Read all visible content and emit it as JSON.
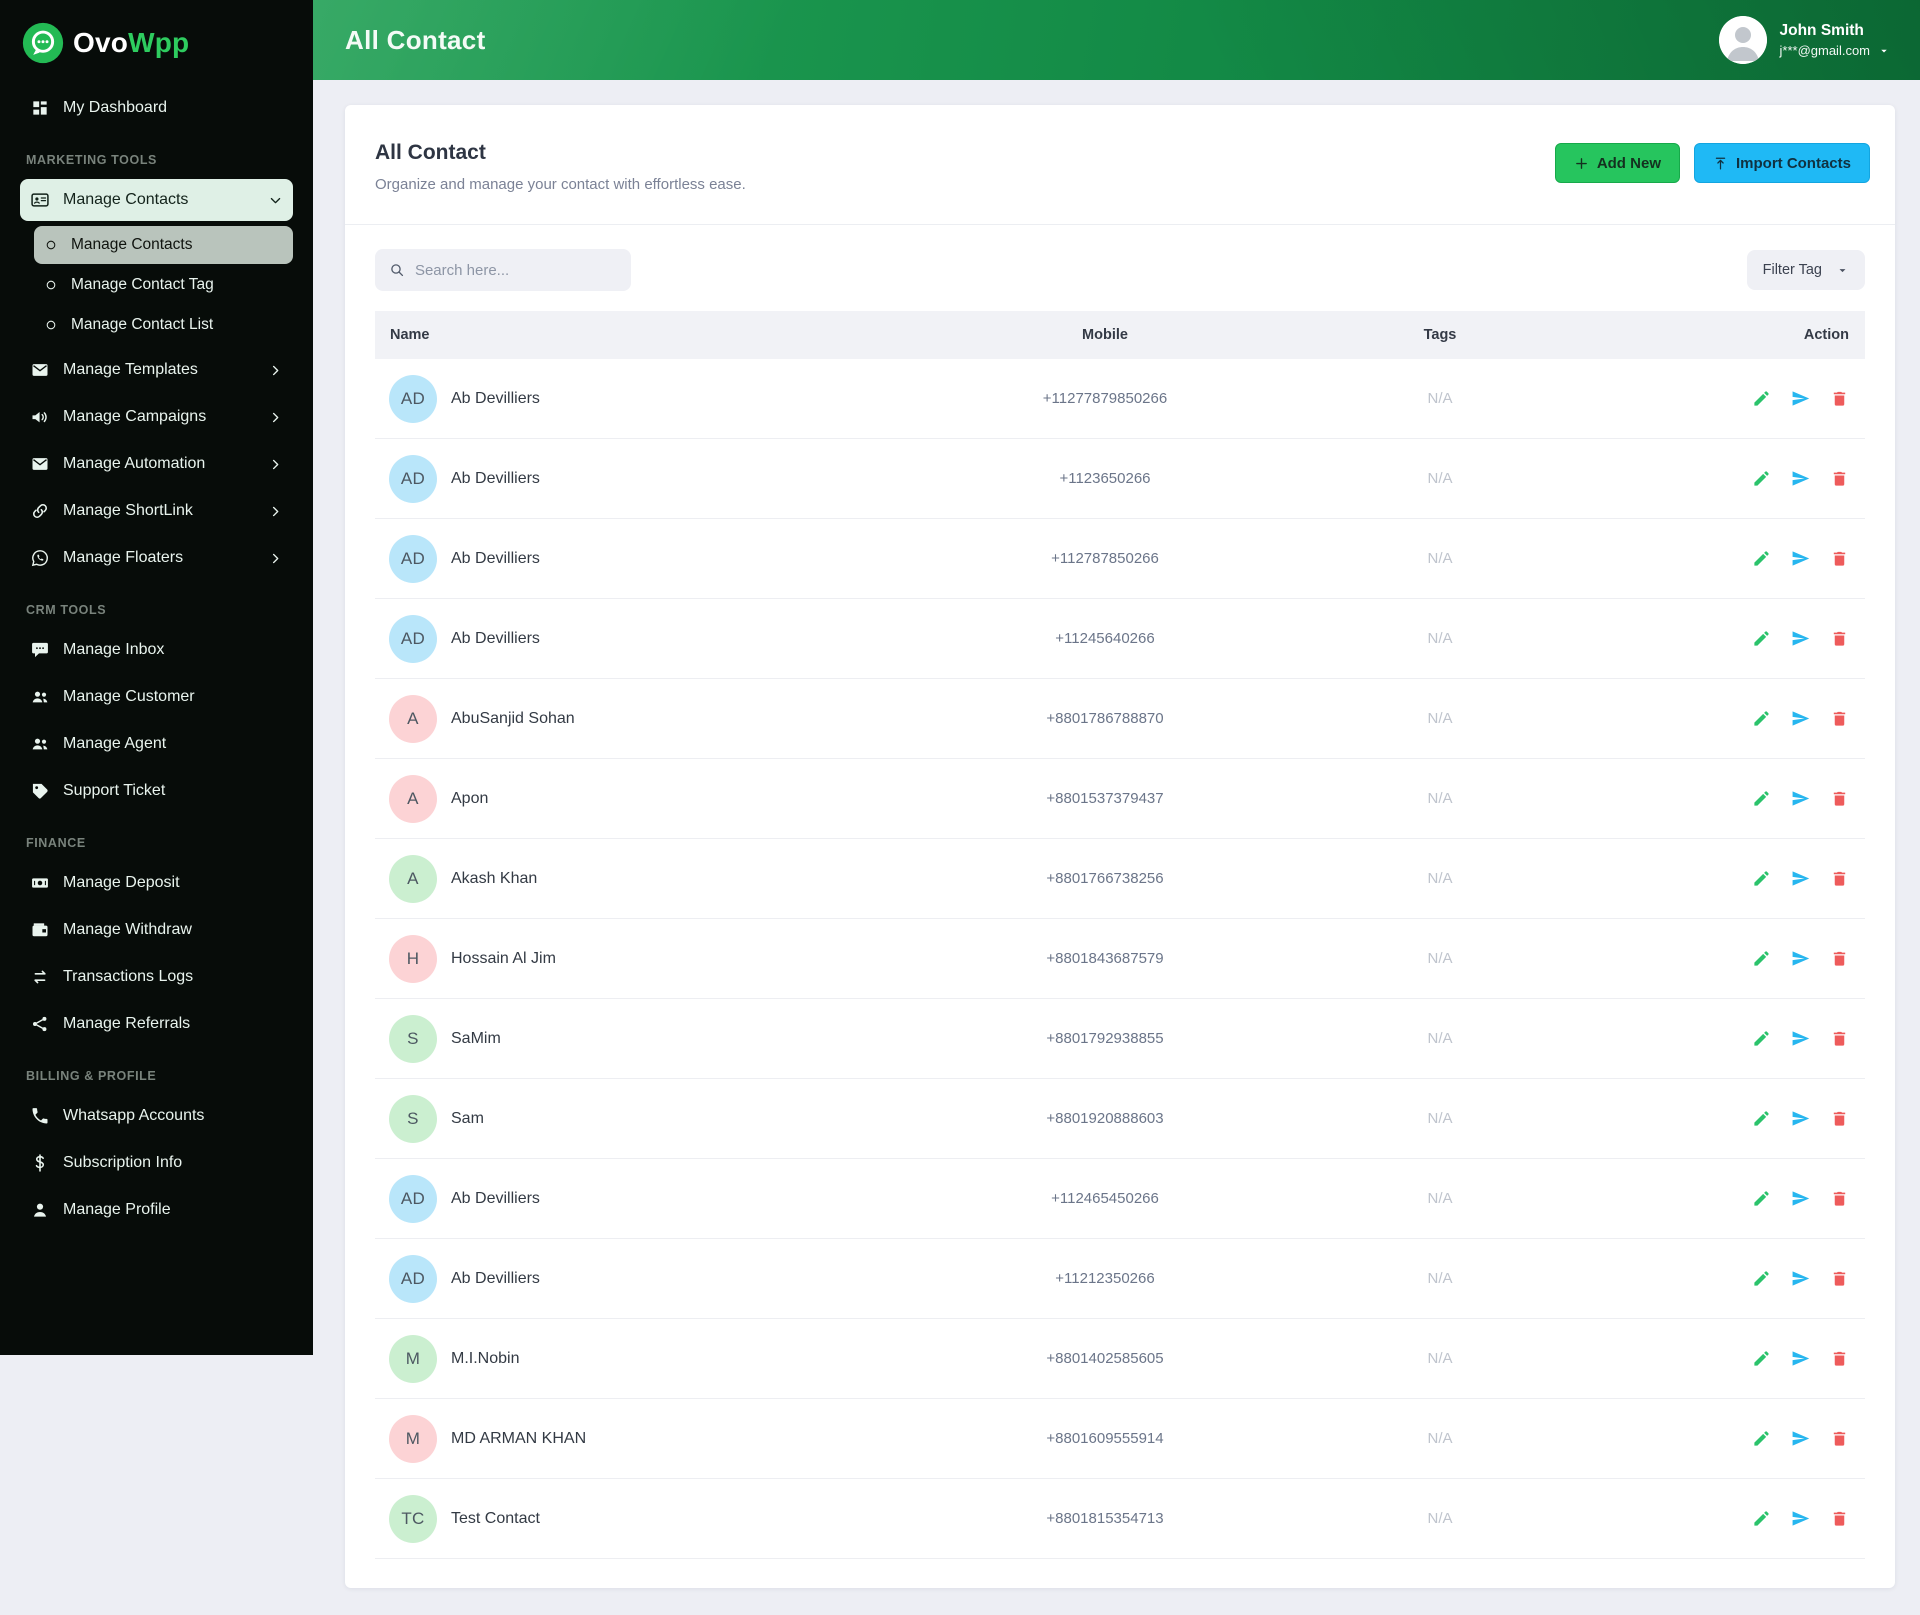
{
  "brand": {
    "name_primary": "Ovo",
    "name_secondary": "Wpp"
  },
  "header": {
    "title": "All Contact",
    "user": {
      "name": "John Smith",
      "email": "j***@gmail.com"
    }
  },
  "sidebar": {
    "entries": [
      {
        "type": "item",
        "icon": "dashboard",
        "label": "My Dashboard"
      },
      {
        "type": "section",
        "label": "MARKETING TOOLS"
      },
      {
        "type": "item",
        "icon": "idcard",
        "label": "Manage Contacts",
        "active": true,
        "chevron": "chevron-down"
      },
      {
        "type": "subitem",
        "icon": "circle",
        "label": "Manage Contacts",
        "active": true
      },
      {
        "type": "subitem",
        "icon": "circle",
        "label": "Manage Contact Tag"
      },
      {
        "type": "subitem",
        "icon": "circle",
        "label": "Manage Contact List"
      },
      {
        "type": "item",
        "icon": "envelope",
        "label": "Manage Templates",
        "chevron": "chevron-right"
      },
      {
        "type": "item",
        "icon": "megaphone",
        "label": "Manage Campaigns",
        "chevron": "chevron-right"
      },
      {
        "type": "item",
        "icon": "envelope",
        "label": "Manage Automation",
        "chevron": "chevron-right"
      },
      {
        "type": "item",
        "icon": "link",
        "label": "Manage ShortLink",
        "chevron": "chevron-right"
      },
      {
        "type": "item",
        "icon": "whatsapp",
        "label": "Manage Floaters",
        "chevron": "chevron-right"
      },
      {
        "type": "section",
        "label": "CRM TOOLS"
      },
      {
        "type": "item",
        "icon": "chat",
        "label": "Manage Inbox"
      },
      {
        "type": "item",
        "icon": "users",
        "label": "Manage Customer"
      },
      {
        "type": "item",
        "icon": "users",
        "label": "Manage Agent"
      },
      {
        "type": "item",
        "icon": "tag",
        "label": "Support Ticket"
      },
      {
        "type": "section",
        "label": "FINANCE"
      },
      {
        "type": "item",
        "icon": "money",
        "label": "Manage Deposit"
      },
      {
        "type": "item",
        "icon": "wallet",
        "label": "Manage Withdraw"
      },
      {
        "type": "item",
        "icon": "exchange",
        "label": "Transactions Logs"
      },
      {
        "type": "item",
        "icon": "share",
        "label": "Manage Referrals"
      },
      {
        "type": "section",
        "label": "BILLING & PROFILE"
      },
      {
        "type": "item",
        "icon": "phone",
        "label": "Whatsapp Accounts"
      },
      {
        "type": "item",
        "icon": "dollar",
        "label": "Subscription Info"
      },
      {
        "type": "item",
        "icon": "user",
        "label": "Manage Profile"
      }
    ]
  },
  "content": {
    "title": "All Contact",
    "subtitle": "Organize and manage your contact with effortless ease.",
    "buttons": {
      "add_new": "Add New",
      "import": "Import Contacts"
    },
    "toolbar": {
      "search_placeholder": "Search here...",
      "filter_tag": "Filter Tag"
    }
  },
  "contacts": {
    "headers": {
      "name": "Name",
      "mobile": "Mobile",
      "tags": "Tags",
      "action": "Action"
    },
    "rows": [
      {
        "initials": "AD",
        "name": "Ab Devilliers",
        "mobile": "+11277879850266",
        "tags": "N/A",
        "avatar_bg": "#b9e6fa"
      },
      {
        "initials": "AD",
        "name": "Ab Devilliers",
        "mobile": "+1123650266",
        "tags": "N/A",
        "avatar_bg": "#b9e6fa"
      },
      {
        "initials": "AD",
        "name": "Ab Devilliers",
        "mobile": "+112787850266",
        "tags": "N/A",
        "avatar_bg": "#b9e6fa"
      },
      {
        "initials": "AD",
        "name": "Ab Devilliers",
        "mobile": "+11245640266",
        "tags": "N/A",
        "avatar_bg": "#b9e6fa"
      },
      {
        "initials": "A",
        "name": "AbuSanjid Sohan",
        "mobile": "+8801786788870",
        "tags": "N/A",
        "avatar_bg": "#fcd3d5"
      },
      {
        "initials": "A",
        "name": "Apon",
        "mobile": "+8801537379437",
        "tags": "N/A",
        "avatar_bg": "#fcd3d5"
      },
      {
        "initials": "A",
        "name": "Akash Khan",
        "mobile": "+8801766738256",
        "tags": "N/A",
        "avatar_bg": "#cbefd0"
      },
      {
        "initials": "H",
        "name": "Hossain Al Jim",
        "mobile": "+8801843687579",
        "tags": "N/A",
        "avatar_bg": "#fcd3d5"
      },
      {
        "initials": "S",
        "name": "SaMim",
        "mobile": "+8801792938855",
        "tags": "N/A",
        "avatar_bg": "#cbefd0"
      },
      {
        "initials": "S",
        "name": "Sam",
        "mobile": "+8801920888603",
        "tags": "N/A",
        "avatar_bg": "#cbefd0"
      },
      {
        "initials": "AD",
        "name": "Ab Devilliers",
        "mobile": "+112465450266",
        "tags": "N/A",
        "avatar_bg": "#b9e6fa"
      },
      {
        "initials": "AD",
        "name": "Ab Devilliers",
        "mobile": "+11212350266",
        "tags": "N/A",
        "avatar_bg": "#b9e6fa"
      },
      {
        "initials": "M",
        "name": "M.I.Nobin",
        "mobile": "+8801402585605",
        "tags": "N/A",
        "avatar_bg": "#cbefd0"
      },
      {
        "initials": "M",
        "name": "MD ARMAN KHAN",
        "mobile": "+8801609555914",
        "tags": "N/A",
        "avatar_bg": "#fcd3d5"
      },
      {
        "initials": "TC",
        "name": "Test Contact",
        "mobile": "+8801815354713",
        "tags": "N/A",
        "avatar_bg": "#cbefd0"
      }
    ]
  },
  "colors": {
    "header_green": "#138a46",
    "accent_green": "#26c55e",
    "accent_blue": "#1fb9f5",
    "action_edit": "#2bc36b",
    "action_send": "#27b6ef",
    "action_delete": "#ee5b5b",
    "avatar_blue": "#b9e6fa",
    "avatar_pink": "#fcd3d5",
    "avatar_green": "#cbefd0"
  }
}
